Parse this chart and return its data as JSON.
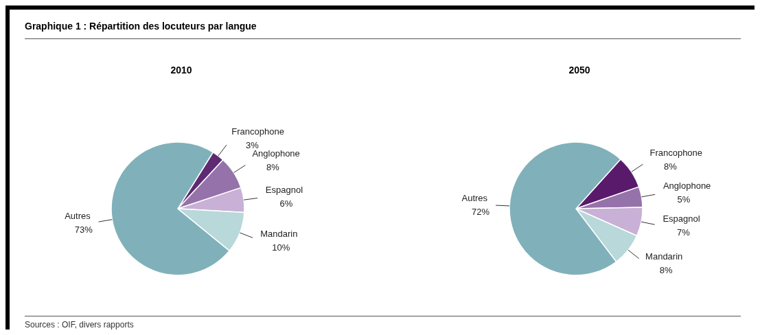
{
  "chart_data": [
    {
      "type": "pie",
      "title": "Graphique 1 : Répartition des locuteurs par langue",
      "subtitle": "2010",
      "categories": [
        "Francophone",
        "Anglophone",
        "Espagnol",
        "Mandarin",
        "Autres"
      ],
      "values": [
        3,
        8,
        6,
        10,
        73
      ],
      "value_labels": [
        "3%",
        "8%",
        "6%",
        "10%",
        "73%"
      ],
      "colors": [
        "#5e2a73",
        "#9672aa",
        "#c8b0d6",
        "#b8d8da",
        "#80b1ba"
      ],
      "annotations": [
        "Sources : OIF, divers rapports"
      ]
    },
    {
      "type": "pie",
      "subtitle": "2050",
      "categories": [
        "Francophone",
        "Anglophone",
        "Espagnol",
        "Mandarin",
        "Autres"
      ],
      "values": [
        8,
        5,
        7,
        8,
        72
      ],
      "value_labels": [
        "8%",
        "5%",
        "7%",
        "8%",
        "72%"
      ],
      "colors": [
        "#5a1a6c",
        "#9672aa",
        "#c8b0d6",
        "#b8d8da",
        "#80b1ba"
      ]
    }
  ]
}
